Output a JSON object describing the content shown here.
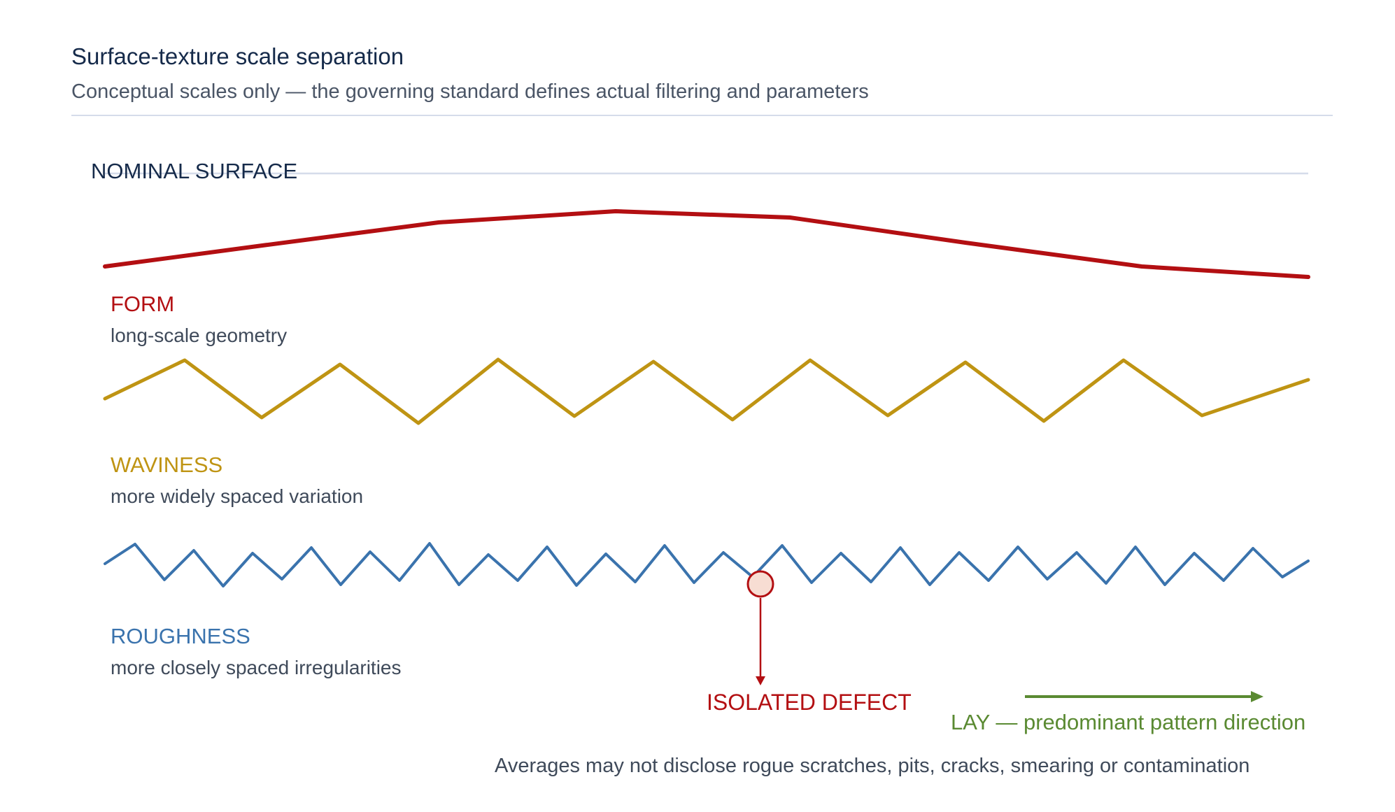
{
  "header": {
    "title": "Surface-texture scale separation",
    "subtitle": "Conceptual scales only — the governing standard defines actual filtering and parameters"
  },
  "nominal": {
    "label": "NOMINAL SURFACE"
  },
  "scales": [
    {
      "id": "form",
      "label": "FORM",
      "description": "long-scale geometry",
      "color": "#b30f12"
    },
    {
      "id": "waviness",
      "label": "WAVINESS",
      "description": "more widely spaced variation",
      "color": "#bf9413"
    },
    {
      "id": "roughness",
      "label": "ROUGHNESS",
      "description": "more closely spaced irregularities",
      "color": "#3a73ad"
    }
  ],
  "defect": {
    "label": "ISOLATED DEFECT",
    "color": "#b30f12",
    "fill": "#f7ddd3"
  },
  "lay": {
    "label": "LAY — predominant pattern direction",
    "color": "#5a8a32"
  },
  "footnote": "Averages may not disclose rogue scratches, pits, cracks, smearing or contamination",
  "colors": {
    "title": "#152a4a",
    "subtitle": "#4a5566",
    "description": "#3f4a5a",
    "rule": "#d5dcea"
  }
}
